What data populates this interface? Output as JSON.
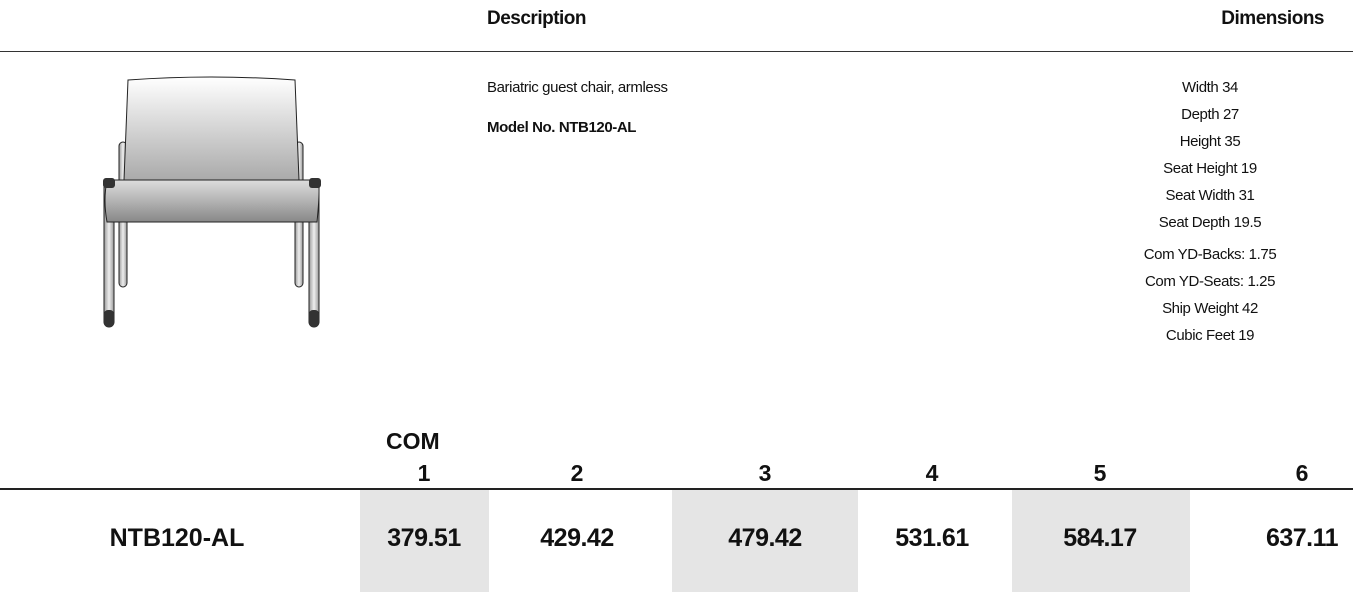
{
  "header": {
    "description": "Description",
    "dimensions": "Dimensions"
  },
  "product": {
    "description": "Bariatric guest chair, armless",
    "model": "Model No. NTB120-AL"
  },
  "dimensions": [
    [
      "Width 34",
      "Depth 27",
      "Height 35",
      "Seat Height 19",
      "Seat Width 31",
      "Seat Depth 19.5"
    ],
    [
      "Com YD-Backs: 1.75",
      "Com YD-Seats: 1.25",
      "Ship Weight 42",
      "Cubic Feet 19"
    ]
  ],
  "pricing": {
    "com_label": "COM",
    "grades": [
      1,
      2,
      3,
      4,
      5,
      6
    ],
    "row": {
      "model": "NTB120-AL",
      "prices": [
        379.51,
        429.42,
        479.42,
        531.61,
        584.17,
        637.11
      ]
    }
  }
}
